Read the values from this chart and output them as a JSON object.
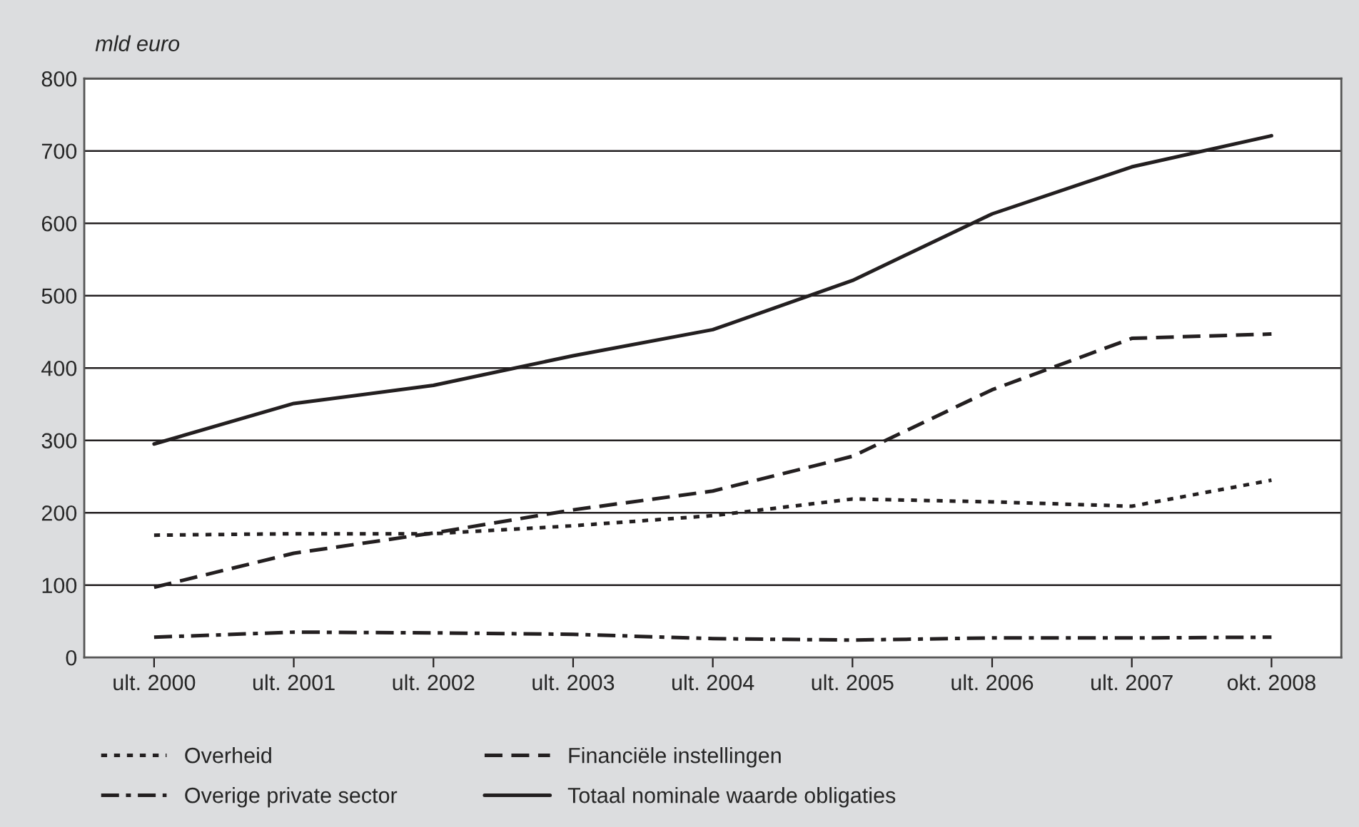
{
  "chart_data": {
    "type": "line",
    "ylabel": "mld euro",
    "categories": [
      "ult. 2000",
      "ult. 2001",
      "ult. 2002",
      "ult. 2003",
      "ult. 2004",
      "ult. 2005",
      "ult. 2006",
      "ult. 2007",
      "okt. 2008"
    ],
    "series": [
      {
        "name": "Overheid",
        "color": "#231f20",
        "line_style": "dotted",
        "values": [
          169,
          171,
          171,
          182,
          196,
          219,
          215,
          209,
          245
        ]
      },
      {
        "name": "Financiële instellingen",
        "color": "#231f20",
        "line_style": "dashed",
        "values": [
          97,
          144,
          172,
          204,
          230,
          278,
          370,
          441,
          447
        ]
      },
      {
        "name": "Overige private sector",
        "color": "#231f20",
        "line_style": "dashdot",
        "values": [
          28,
          35,
          34,
          32,
          26,
          24,
          27,
          27,
          28
        ]
      },
      {
        "name": "Totaal nominale waarde obligaties",
        "color": "#231f20",
        "line_style": "solid",
        "values": [
          295,
          351,
          376,
          417,
          453,
          521,
          613,
          678,
          721
        ]
      }
    ],
    "ylim": [
      0,
      800
    ],
    "yticks": [
      0,
      100,
      200,
      300,
      400,
      500,
      600,
      700,
      800
    ],
    "grid": "y",
    "legend": "bottom",
    "marker": "none"
  }
}
